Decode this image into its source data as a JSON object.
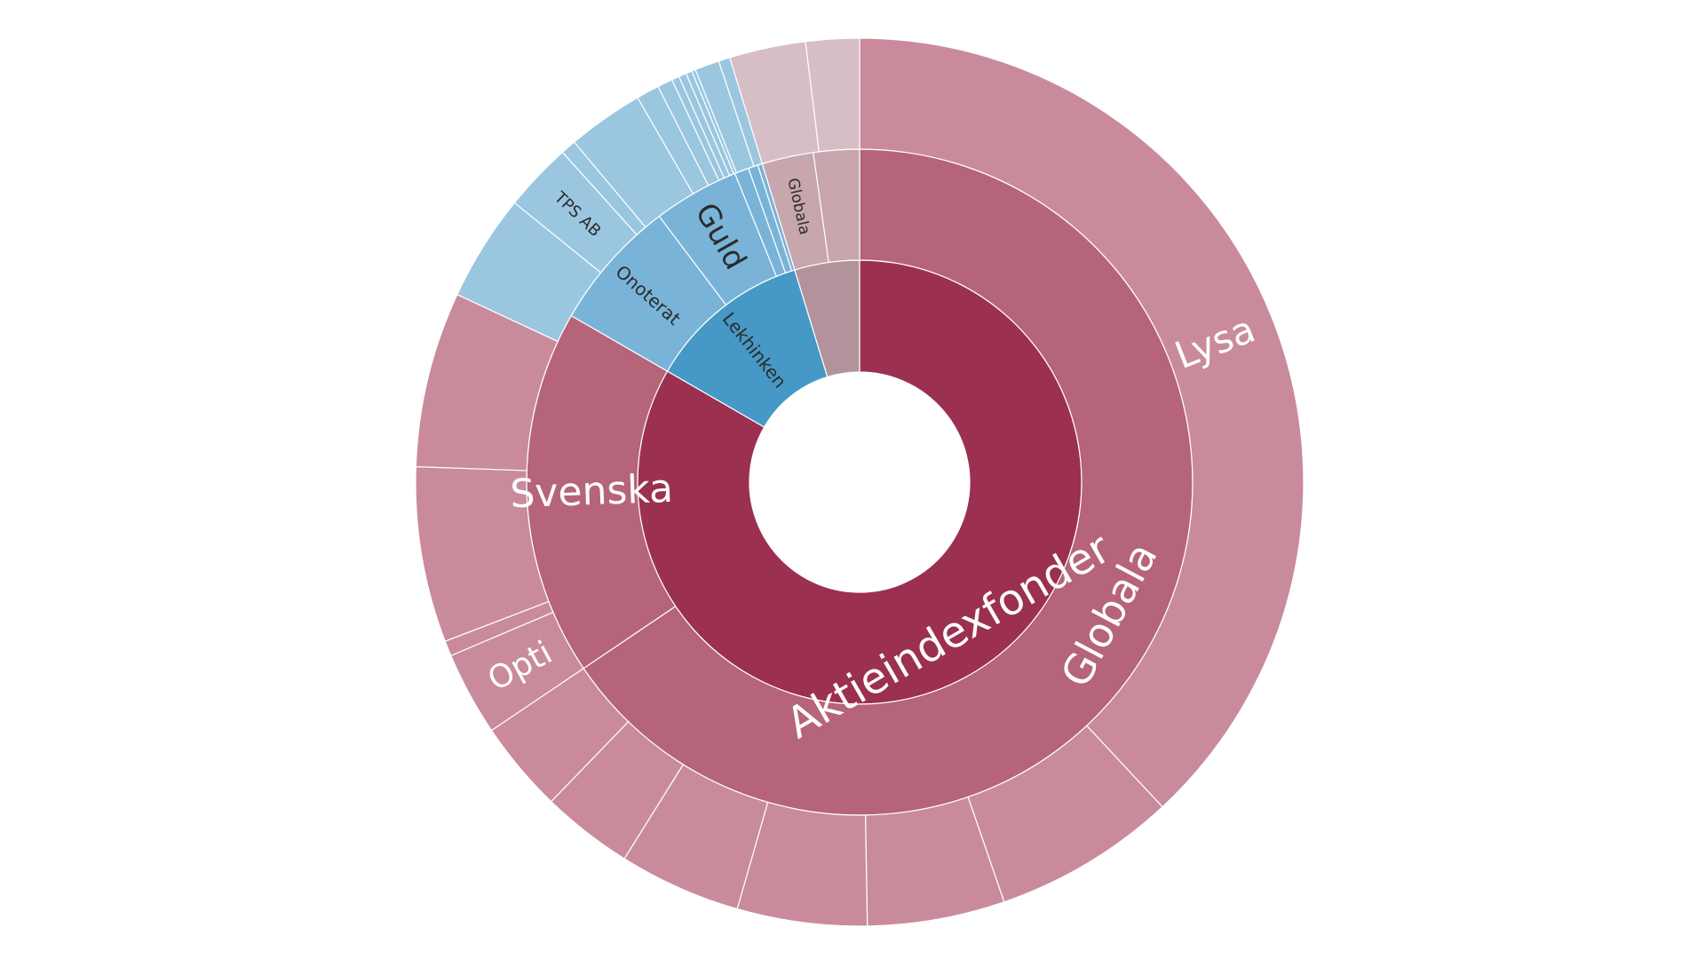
{
  "chart_data": {
    "type": "sunburst",
    "unit": "degrees",
    "center": {
      "cx": 968,
      "cy": 543
    },
    "rings": {
      "hole": 124,
      "r1": [
        124,
        250
      ],
      "r2": [
        250,
        375
      ],
      "r3": [
        375,
        500
      ]
    },
    "colors": {
      "ring1_red": "#9c3050",
      "ring2_red": "#b5647a",
      "ring3_red": "#c98b9c",
      "ring1_blue": "#4699c6",
      "ring2_blue": "#79b4d8",
      "ring3_blue": "#9ac6e0",
      "ring1_gray": "#b3939b",
      "ring2_gray": "#c7a6ae",
      "ring3_gray": "#d7bdc5",
      "separator": "#ffffff",
      "label_light": "#ffffff",
      "label_dark": "#2b2b2b"
    },
    "segments": [
      {
        "ring": 1,
        "a0": 0,
        "a1": 300,
        "color": "ring1_red",
        "label": "Aktieindexfonder",
        "label_pos": "bottom",
        "text_r": 200,
        "font": 48,
        "text_color": "label_light"
      },
      {
        "ring": 1,
        "a0": 300,
        "a1": 343,
        "color": "ring1_blue",
        "label": "Lekhinken",
        "text_r": 190,
        "font": 20,
        "text_color": "label_dark"
      },
      {
        "ring": 1,
        "a0": 343,
        "a1": 360,
        "color": "ring1_gray",
        "label": ""
      },
      {
        "ring": 2,
        "a0": 0,
        "a1": 236,
        "color": "ring2_red",
        "label": "Globala",
        "label_pos": "bottom",
        "text_r": 318,
        "font": 46,
        "text_color": "label_light"
      },
      {
        "ring": 2,
        "a0": 236,
        "a1": 300,
        "color": "ring2_red",
        "label": "Svenska",
        "text_r": 302,
        "font": 44,
        "text_color": "label_light"
      },
      {
        "ring": 2,
        "a0": 300,
        "a1": 323,
        "color": "ring2_blue",
        "label": "Onoterat",
        "text_r": 318,
        "font": 20,
        "text_color": "label_dark"
      },
      {
        "ring": 2,
        "a0": 323,
        "a1": 338,
        "color": "ring2_blue",
        "label": "Guld",
        "text_r": 318,
        "font": 34,
        "text_color": "label_dark"
      },
      {
        "ring": 2,
        "a0": 338,
        "a1": 340.5,
        "color": "ring2_blue",
        "label": ""
      },
      {
        "ring": 2,
        "a0": 340.5,
        "a1": 342.2,
        "color": "ring2_blue",
        "label": ""
      },
      {
        "ring": 2,
        "a0": 342.2,
        "a1": 343,
        "color": "ring2_blue",
        "label": ""
      },
      {
        "ring": 2,
        "a0": 343,
        "a1": 352,
        "color": "ring2_gray",
        "label": "Globala",
        "text_r": 318,
        "font": 17,
        "text_color": "label_dark"
      },
      {
        "ring": 2,
        "a0": 352,
        "a1": 360,
        "color": "ring2_gray",
        "label": ""
      },
      {
        "ring": 3,
        "a0": 0,
        "a1": 137,
        "color": "ring3_red",
        "label": "Lysa",
        "text_r": 430,
        "font": 42,
        "text_color": "label_light"
      },
      {
        "ring": 3,
        "a0": 137,
        "a1": 161,
        "color": "ring3_red",
        "label": ""
      },
      {
        "ring": 3,
        "a0": 161,
        "a1": 179,
        "color": "ring3_red",
        "label": ""
      },
      {
        "ring": 3,
        "a0": 179,
        "a1": 196,
        "color": "ring3_red",
        "label": ""
      },
      {
        "ring": 3,
        "a0": 196,
        "a1": 212,
        "color": "ring3_red",
        "label": ""
      },
      {
        "ring": 3,
        "a0": 212,
        "a1": 224,
        "color": "ring3_red",
        "label": ""
      },
      {
        "ring": 3,
        "a0": 224,
        "a1": 236,
        "color": "ring3_red",
        "label": ""
      },
      {
        "ring": 3,
        "a0": 236,
        "a1": 247,
        "color": "ring3_red",
        "label": "Opti",
        "text_r": 435,
        "font": 36,
        "text_color": "label_light"
      },
      {
        "ring": 3,
        "a0": 247,
        "a1": 249,
        "color": "ring3_red",
        "label": ""
      },
      {
        "ring": 3,
        "a0": 249,
        "a1": 272,
        "color": "ring3_red",
        "label": ""
      },
      {
        "ring": 3,
        "a0": 272,
        "a1": 295,
        "color": "ring3_red",
        "label": ""
      },
      {
        "ring": 3,
        "a0": 295,
        "a1": 309,
        "color": "ring3_blue",
        "label": ""
      },
      {
        "ring": 3,
        "a0": 309,
        "a1": 318,
        "color": "ring3_blue",
        "label": "TPS AB",
        "text_r": 438,
        "font": 18,
        "text_color": "label_dark"
      },
      {
        "ring": 3,
        "a0": 318,
        "a1": 320,
        "color": "ring3_blue",
        "label": ""
      },
      {
        "ring": 3,
        "a0": 320,
        "a1": 330,
        "color": "ring3_blue",
        "label": ""
      },
      {
        "ring": 3,
        "a0": 330,
        "a1": 333,
        "color": "ring3_blue",
        "label": ""
      },
      {
        "ring": 3,
        "a0": 333,
        "a1": 335,
        "color": "ring3_blue",
        "label": ""
      },
      {
        "ring": 3,
        "a0": 335,
        "a1": 336,
        "color": "ring3_blue",
        "label": ""
      },
      {
        "ring": 3,
        "a0": 336,
        "a1": 337,
        "color": "ring3_blue",
        "label": ""
      },
      {
        "ring": 3,
        "a0": 337,
        "a1": 337.8,
        "color": "ring3_blue",
        "label": ""
      },
      {
        "ring": 3,
        "a0": 337.8,
        "a1": 338.3,
        "color": "ring3_blue",
        "label": ""
      },
      {
        "ring": 3,
        "a0": 338.3,
        "a1": 341.5,
        "color": "ring3_blue",
        "label": ""
      },
      {
        "ring": 3,
        "a0": 341.5,
        "a1": 343,
        "color": "ring3_blue",
        "label": ""
      },
      {
        "ring": 3,
        "a0": 343,
        "a1": 353,
        "color": "ring3_gray",
        "label": ""
      },
      {
        "ring": 3,
        "a0": 353,
        "a1": 360,
        "color": "ring3_gray",
        "label": ""
      }
    ]
  }
}
